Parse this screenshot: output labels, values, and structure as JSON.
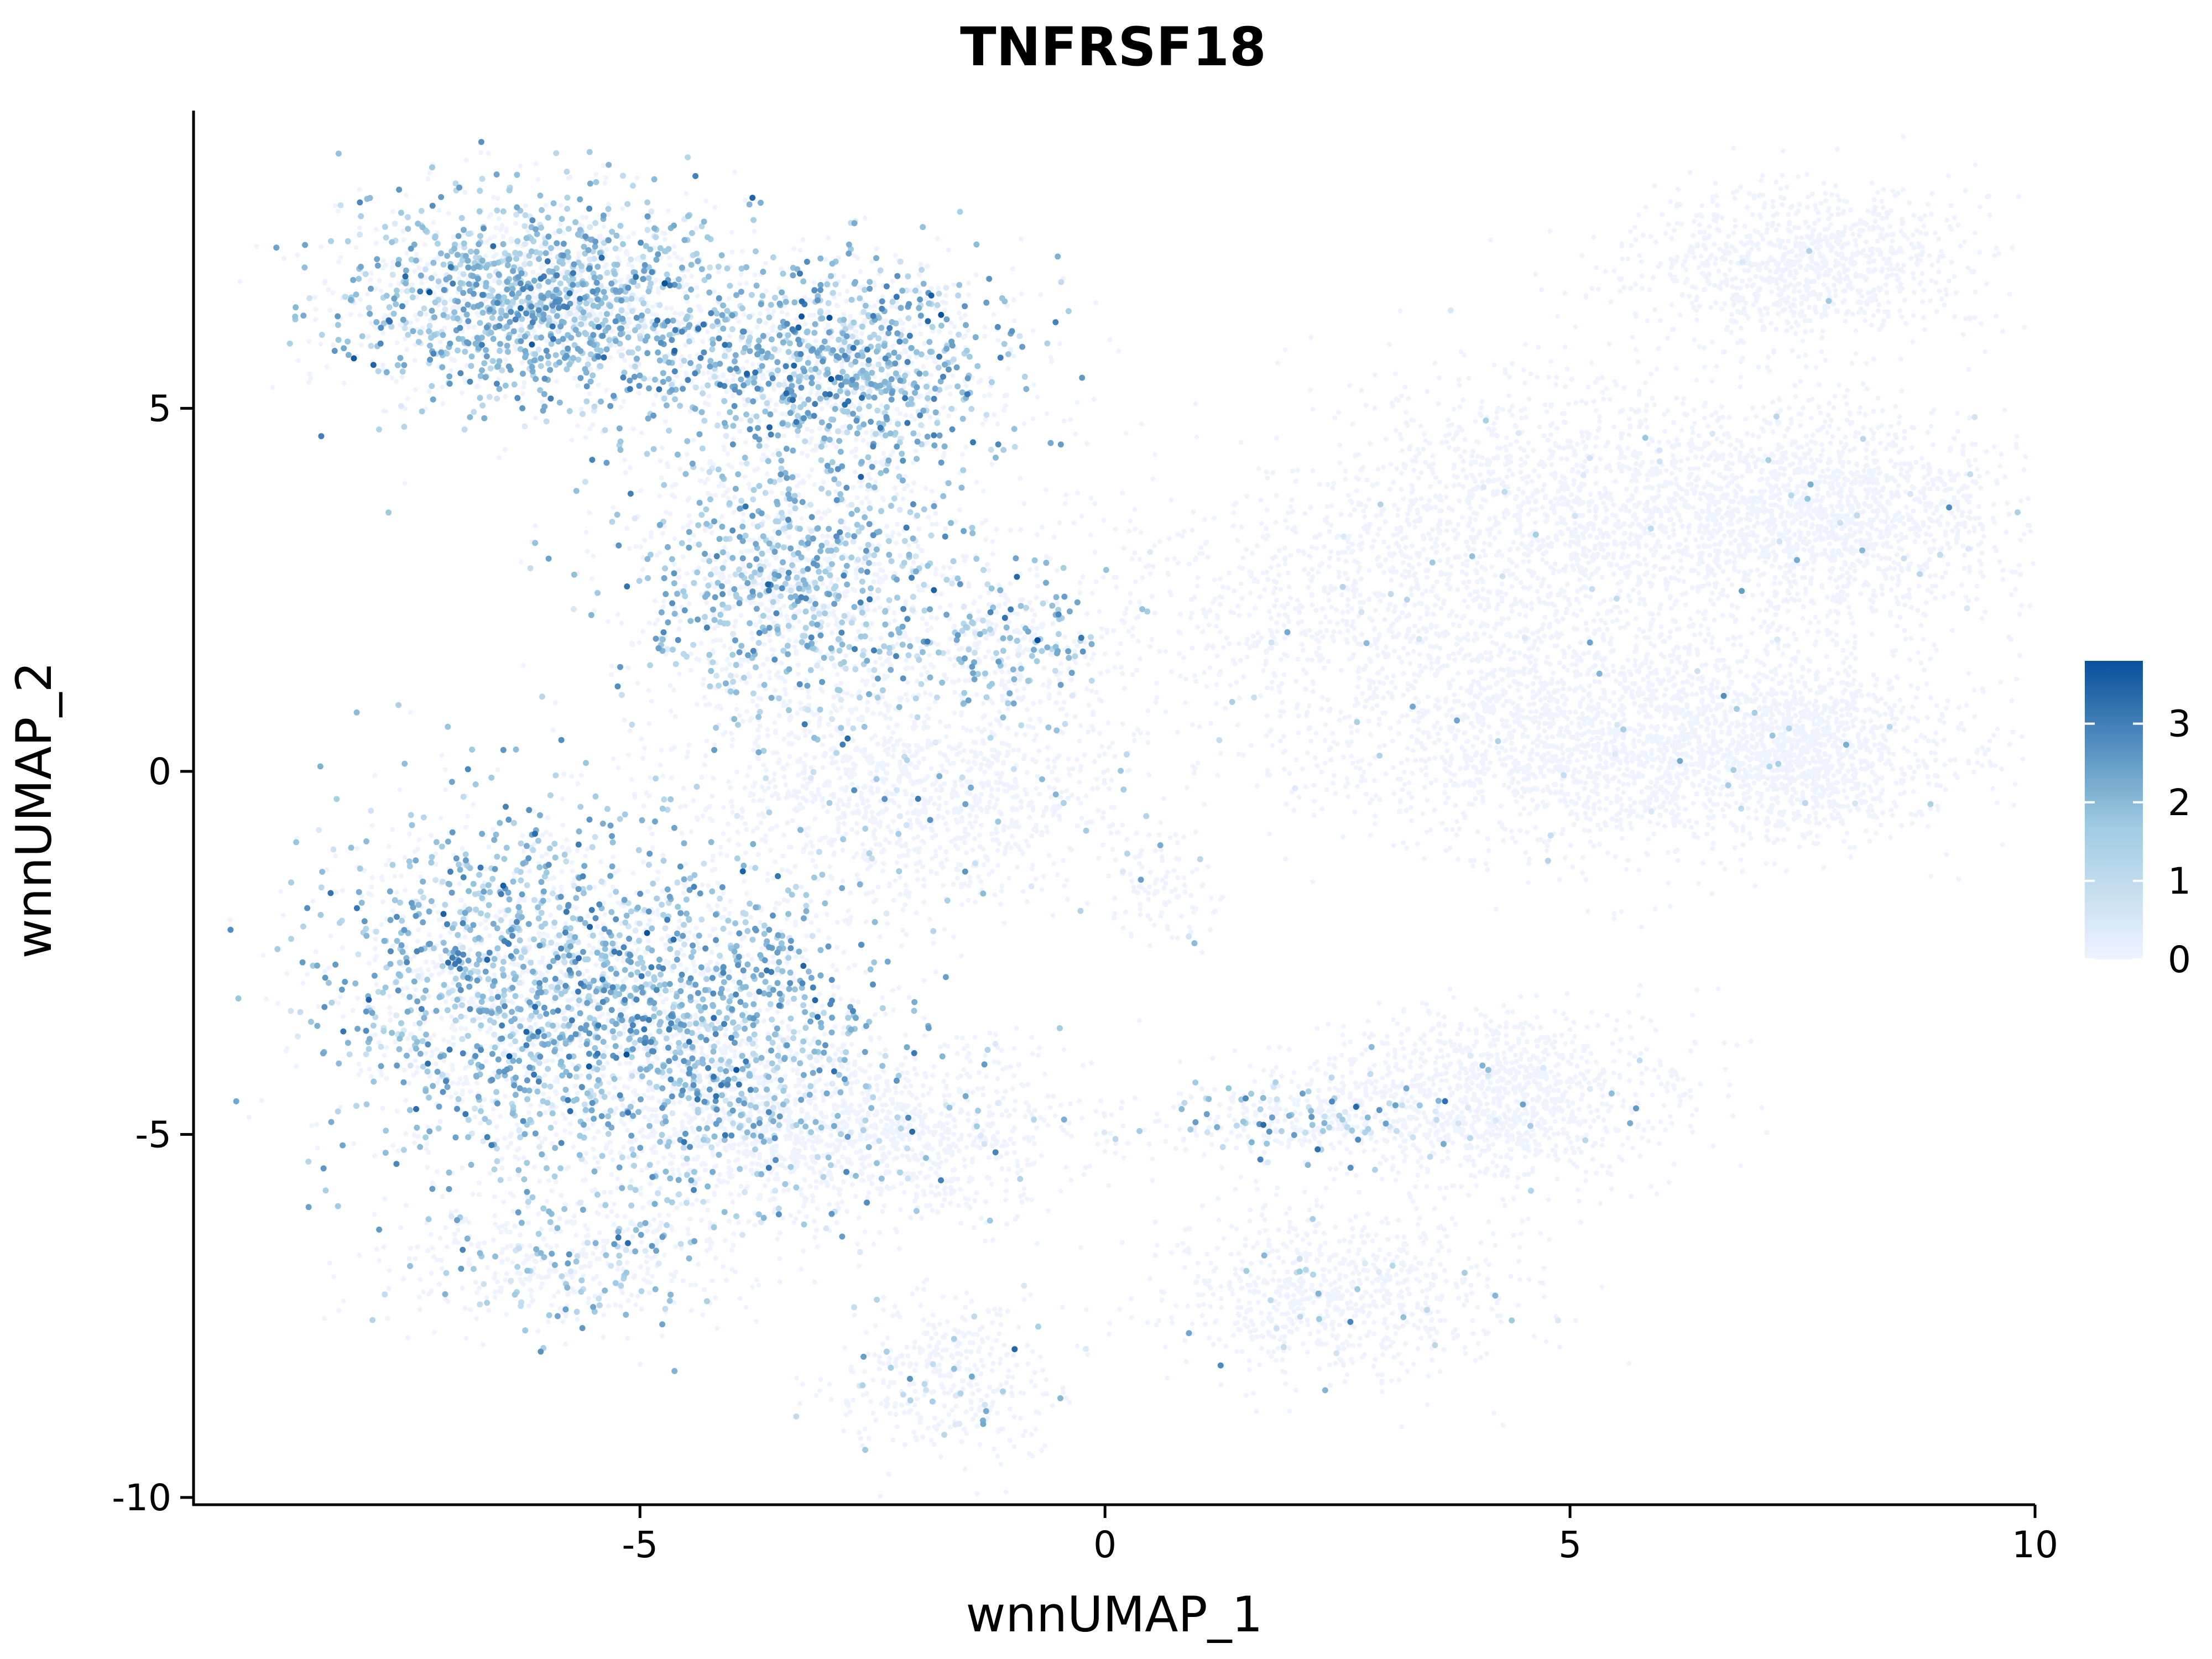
{
  "chart_data": {
    "type": "scatter",
    "title": "TNFRSF18",
    "xlabel": "wnnUMAP_1",
    "ylabel": "wnnUMAP_2",
    "xlim": [
      -9.8,
      10
    ],
    "ylim": [
      -10.1,
      9.1
    ],
    "x_ticks": [
      -5,
      0,
      5,
      10
    ],
    "x_tick_labels": [
      "-5",
      "0",
      "5",
      "10"
    ],
    "y_ticks": [
      -10,
      -5,
      0,
      5
    ],
    "y_tick_labels": [
      "-10",
      "-5",
      "0",
      "5"
    ],
    "grid": false,
    "legend": {
      "placement": "right",
      "min": 0,
      "max": 3.8,
      "ticks": [
        0,
        1,
        2,
        3
      ],
      "tick_labels": [
        "0",
        "1",
        "2",
        "3"
      ],
      "low_color": "#EEF3FF",
      "mid_color": "#9ECAE1",
      "high_color": "#08519C"
    },
    "clusters": [
      {
        "cx": -6.0,
        "cy": 6.5,
        "sx": 1.1,
        "sy": 0.7,
        "n": 1800,
        "expr": 0.55,
        "level": 1.8
      },
      {
        "cx": -2.9,
        "cy": 5.5,
        "sx": 1.0,
        "sy": 0.8,
        "n": 1400,
        "expr": 0.5,
        "level": 1.9
      },
      {
        "cx": -3.4,
        "cy": 2.6,
        "sx": 0.9,
        "sy": 0.9,
        "n": 1300,
        "expr": 0.42,
        "level": 1.7
      },
      {
        "cx": -1.0,
        "cy": 1.8,
        "sx": 0.5,
        "sy": 0.5,
        "n": 300,
        "expr": 0.35,
        "level": 1.8
      },
      {
        "cx": -2.0,
        "cy": -0.2,
        "sx": 1.2,
        "sy": 0.8,
        "n": 1300,
        "expr": 0.04,
        "level": 1.4
      },
      {
        "cx": -6.5,
        "cy": -3.0,
        "sx": 1.0,
        "sy": 1.3,
        "n": 1700,
        "expr": 0.5,
        "level": 1.8
      },
      {
        "cx": -4.3,
        "cy": -3.5,
        "sx": 1.0,
        "sy": 1.1,
        "n": 1600,
        "expr": 0.5,
        "level": 1.9
      },
      {
        "cx": -2.8,
        "cy": -5.0,
        "sx": 1.3,
        "sy": 0.6,
        "n": 1400,
        "expr": 0.05,
        "level": 1.3
      },
      {
        "cx": -5.8,
        "cy": -6.7,
        "sx": 1.0,
        "sy": 0.5,
        "n": 500,
        "expr": 0.25,
        "level": 1.6
      },
      {
        "cx": -1.7,
        "cy": -8.4,
        "sx": 0.6,
        "sy": 0.6,
        "n": 400,
        "expr": 0.08,
        "level": 1.5
      },
      {
        "cx": 4.1,
        "cy": -4.5,
        "sx": 1.0,
        "sy": 0.6,
        "n": 1200,
        "expr": 0.02,
        "level": 1.3
      },
      {
        "cx": 2.0,
        "cy": -4.8,
        "sx": 0.8,
        "sy": 0.25,
        "n": 300,
        "expr": 0.2,
        "level": 1.6
      },
      {
        "cx": 2.5,
        "cy": -7.2,
        "sx": 1.0,
        "sy": 0.6,
        "n": 800,
        "expr": 0.04,
        "level": 1.4
      },
      {
        "cx": 5.8,
        "cy": 0.5,
        "sx": 1.8,
        "sy": 0.8,
        "n": 2600,
        "expr": 0.01,
        "level": 1.2
      },
      {
        "cx": 7.6,
        "cy": 0.2,
        "sx": 0.5,
        "sy": 0.5,
        "n": 500,
        "expr": 0.01,
        "level": 1.2
      },
      {
        "cx": 7.8,
        "cy": 3.5,
        "sx": 1.0,
        "sy": 0.7,
        "n": 1400,
        "expr": 0.01,
        "level": 1.2
      },
      {
        "cx": 7.5,
        "cy": 7.0,
        "sx": 0.9,
        "sy": 0.55,
        "n": 1000,
        "expr": 0.01,
        "level": 1.2
      },
      {
        "cx": 5.3,
        "cy": 3.8,
        "sx": 1.4,
        "sy": 0.9,
        "n": 1400,
        "expr": 0.02,
        "level": 1.2
      },
      {
        "cx": 2.7,
        "cy": 2.3,
        "sx": 1.8,
        "sy": 0.9,
        "n": 1000,
        "expr": 0.02,
        "level": 1.3
      },
      {
        "cx": 0.6,
        "cy": -1.6,
        "sx": 0.3,
        "sy": 0.4,
        "n": 100,
        "expr": 0.1,
        "level": 1.5
      }
    ]
  }
}
